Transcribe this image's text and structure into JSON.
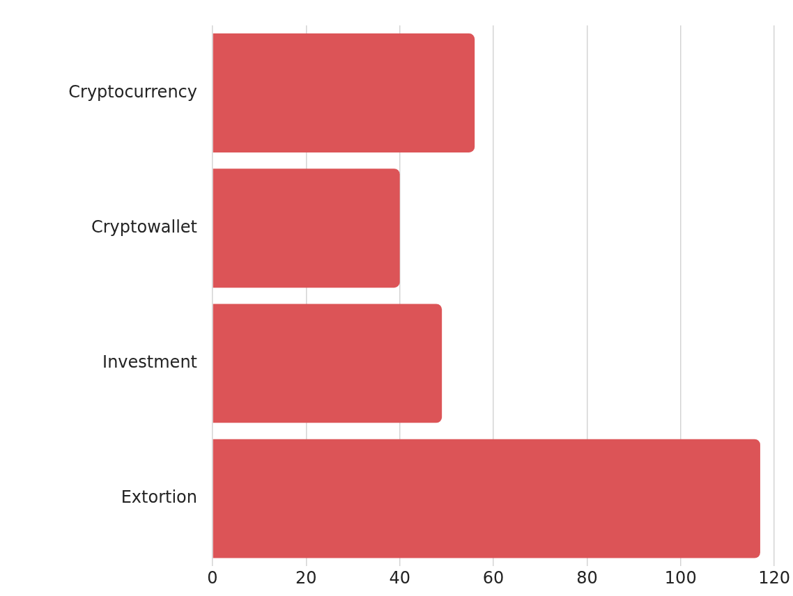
{
  "chart_data": {
    "type": "bar",
    "orientation": "horizontal",
    "categories": [
      "Cryptocurrency",
      "Cryptowallet",
      "Investment",
      "Extortion"
    ],
    "values": [
      56,
      40,
      49,
      117
    ],
    "color": "#dc5457",
    "xlim": [
      0,
      120
    ],
    "xticks": [
      0,
      20,
      40,
      60,
      80,
      100,
      120
    ],
    "grid": "x",
    "legend": false
  }
}
